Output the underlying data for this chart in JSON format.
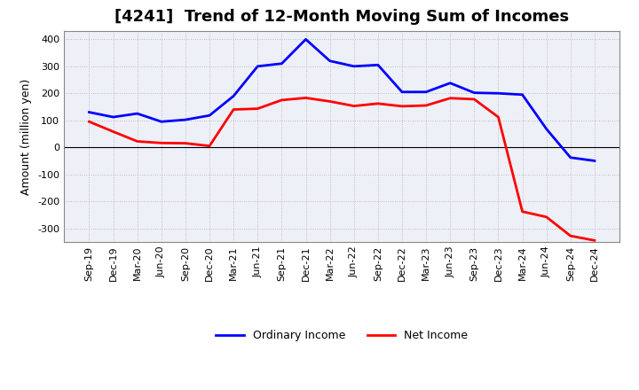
{
  "title": "[4241]  Trend of 12-Month Moving Sum of Incomes",
  "ylabel": "Amount (million yen)",
  "x_labels": [
    "Sep-19",
    "Dec-19",
    "Mar-20",
    "Jun-20",
    "Sep-20",
    "Dec-20",
    "Mar-21",
    "Jun-21",
    "Sep-21",
    "Dec-21",
    "Mar-22",
    "Jun-22",
    "Sep-22",
    "Dec-22",
    "Mar-23",
    "Jun-23",
    "Sep-23",
    "Dec-23",
    "Mar-24",
    "Jun-24",
    "Sep-24",
    "Dec-24"
  ],
  "ordinary_income": [
    130,
    112,
    125,
    95,
    102,
    118,
    190,
    300,
    310,
    400,
    320,
    300,
    305,
    205,
    205,
    238,
    202,
    200,
    195,
    68,
    -38,
    -50
  ],
  "net_income": [
    95,
    58,
    22,
    16,
    15,
    5,
    140,
    143,
    175,
    183,
    170,
    153,
    162,
    152,
    155,
    182,
    178,
    112,
    -238,
    -258,
    -328,
    -345
  ],
  "ordinary_color": "#0000FF",
  "net_color": "#FF0000",
  "ylim": [
    -350,
    430
  ],
  "yticks": [
    -300,
    -200,
    -100,
    0,
    100,
    200,
    300,
    400
  ],
  "bg_color": "#FFFFFF",
  "plot_bg_color": "#EEF0F8",
  "grid_color": "#AAAAAA",
  "spine_color": "#888888",
  "title_fontsize": 13,
  "label_fontsize": 9,
  "tick_fontsize": 8,
  "legend_fontsize": 9,
  "line_width": 2.0
}
